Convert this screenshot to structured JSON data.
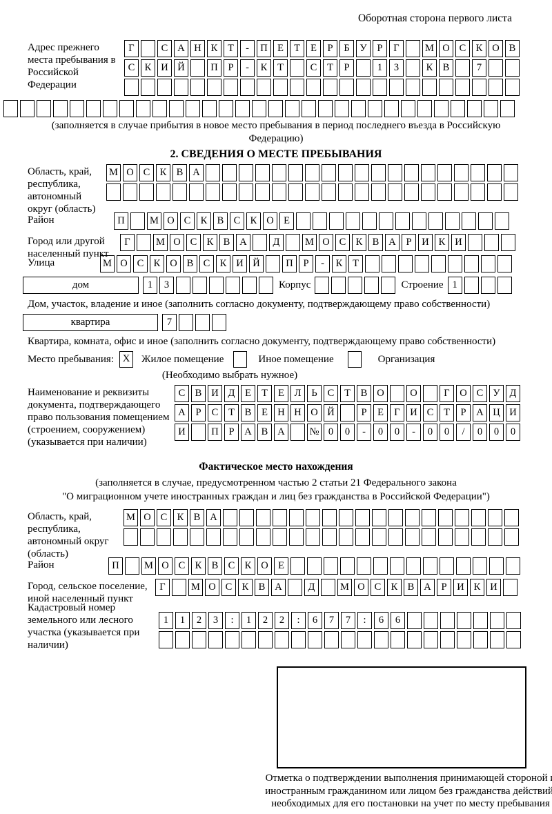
{
  "header": "Оборотная сторона первого листа",
  "prev_address": {
    "label": "Адрес прежнего места пребывания в Российской Федерации",
    "row1": {
      "count": 24,
      "chars": [
        "Г",
        "",
        "С",
        "А",
        "Н",
        "К",
        "Т",
        "-",
        "П",
        "Е",
        "Т",
        "Е",
        "Р",
        "Б",
        "У",
        "Р",
        "Г",
        "",
        "М",
        "О",
        "С",
        "К",
        "О",
        "В"
      ]
    },
    "row2": {
      "count": 24,
      "chars": [
        "С",
        "К",
        "И",
        "Й",
        "",
        "П",
        "Р",
        "-",
        "К",
        "Т",
        "",
        "С",
        "Т",
        "Р",
        "",
        "1",
        "3",
        "",
        "К",
        "В",
        "",
        "7",
        "",
        ""
      ]
    },
    "row3": {
      "count": 24,
      "chars": []
    },
    "row4": {
      "count": 31,
      "chars": []
    },
    "note": "(заполняется в случае прибытия в новое место пребывания в период последнего въезда в Российскую Федерацию)"
  },
  "section2": {
    "title": "2. СВЕДЕНИЯ О МЕСТЕ ПРЕБЫВАНИЯ",
    "region": {
      "label": "Область, край, республика, автономный округ (область)",
      "row1": {
        "count": 25,
        "chars": [
          "М",
          "О",
          "С",
          "К",
          "В",
          "А"
        ]
      },
      "row2": {
        "count": 25,
        "chars": []
      }
    },
    "district": {
      "label": "Район",
      "row": {
        "count": 24,
        "chars": [
          "П",
          "",
          "М",
          "О",
          "С",
          "К",
          "В",
          "С",
          "К",
          "О",
          "Е"
        ]
      }
    },
    "city": {
      "label": "Город или другой населенный пункт",
      "row": {
        "count": 24,
        "chars": [
          "Г",
          "",
          "М",
          "О",
          "С",
          "К",
          "В",
          "А",
          "",
          "Д",
          "",
          "М",
          "О",
          "С",
          "К",
          "В",
          "А",
          "Р",
          "И",
          "К",
          "И"
        ]
      }
    },
    "street": {
      "label": "Улица",
      "row": {
        "count": 25,
        "chars": [
          "М",
          "О",
          "С",
          "К",
          "О",
          "В",
          "С",
          "К",
          "И",
          "Й",
          "",
          "П",
          "Р",
          "-",
          "К",
          "Т"
        ]
      }
    },
    "house": {
      "box_label": "дом",
      "cells": {
        "count": 8,
        "chars": [
          "1",
          "3"
        ]
      },
      "korpus_label": "Корпус",
      "korpus_cells": {
        "count": 5,
        "chars": []
      },
      "stroenie_label": "Строение",
      "stroenie_cells": {
        "count": 4,
        "chars": [
          "1"
        ]
      },
      "note": "Дом, участок, владение и иное (заполнить согласно документу, подтверждающему право собственности)"
    },
    "apartment": {
      "box_label": "квартира",
      "cells": {
        "count": 4,
        "chars": [
          "7"
        ]
      },
      "note": "Квартира, комната, офис и иное (заполнить согласно документу, подтверждающему право собственности)"
    },
    "stay": {
      "label": "Место пребывания:",
      "options": [
        {
          "mark": "X",
          "label": "Жилое помещение"
        },
        {
          "mark": "",
          "label": "Иное помещение"
        },
        {
          "mark": "",
          "label": "Организация"
        }
      ],
      "note": "(Необходимо выбрать нужное)"
    },
    "document": {
      "label": "Наименование и реквизиты документа, подтверждающего право пользования помещением (строением, сооружением) (указывается при наличии)",
      "row1": {
        "count": 21,
        "chars": [
          "С",
          "В",
          "И",
          "Д",
          "Е",
          "Т",
          "Е",
          "Л",
          "Ь",
          "С",
          "Т",
          "В",
          "О",
          "",
          "О",
          "",
          "Г",
          "О",
          "С",
          "У",
          "Д"
        ]
      },
      "row2": {
        "count": 21,
        "chars": [
          "А",
          "Р",
          "С",
          "Т",
          "В",
          "Е",
          "Н",
          "Н",
          "О",
          "Й",
          "",
          "Р",
          "Е",
          "Г",
          "И",
          "С",
          "Т",
          "Р",
          "А",
          "Ц",
          "И"
        ]
      },
      "row3": {
        "count": 21,
        "chars": [
          "И",
          "",
          "П",
          "Р",
          "А",
          "В",
          "А",
          "",
          "№",
          "0",
          "0",
          "-",
          "0",
          "0",
          "-",
          "0",
          "0",
          "/",
          "0",
          "0",
          "0"
        ]
      }
    }
  },
  "actual_location": {
    "title": "Фактическое место нахождения",
    "note_line1": "(заполняется в случае, предусмотренном частью 2 статьи 21 Федерального закона",
    "note_line2": "\"О миграционном учете иностранных граждан и лиц без гражданства в Российской Федерации\")",
    "region": {
      "label": "Область, край, республика, автономный округ (область)",
      "row1": {
        "count": 24,
        "chars": [
          "М",
          "О",
          "С",
          "К",
          "В",
          "А"
        ]
      },
      "row2": {
        "count": 24,
        "chars": []
      }
    },
    "district": {
      "label": "Район",
      "row": {
        "count": 25,
        "chars": [
          "П",
          "",
          "М",
          "О",
          "С",
          "К",
          "В",
          "С",
          "К",
          "О",
          "Е"
        ]
      }
    },
    "city": {
      "label": "Город, сельское поселение, иной населенный пункт",
      "row": {
        "count": 22,
        "chars": [
          "Г",
          "",
          "М",
          "О",
          "С",
          "К",
          "В",
          "А",
          "",
          "Д",
          "",
          "М",
          "О",
          "С",
          "К",
          "В",
          "А",
          "Р",
          "И",
          "К",
          "И"
        ]
      }
    },
    "cadastral": {
      "label": "Кадастровый номер земельного или лесного участка (указывается при наличии)",
      "row1": {
        "count": 22,
        "chars": [
          "1",
          "1",
          "2",
          "3",
          ":",
          "1",
          "2",
          "2",
          ":",
          "6",
          "7",
          "7",
          ":",
          "6",
          "6"
        ]
      },
      "row2": {
        "count": 22,
        "chars": []
      }
    },
    "stamp_note": "Отметка о подтверждении выполнения принимающей стороной и иностранным гражданином или лицом без гражданства действий, необходимых для его постановки на учет по месту пребывания"
  }
}
